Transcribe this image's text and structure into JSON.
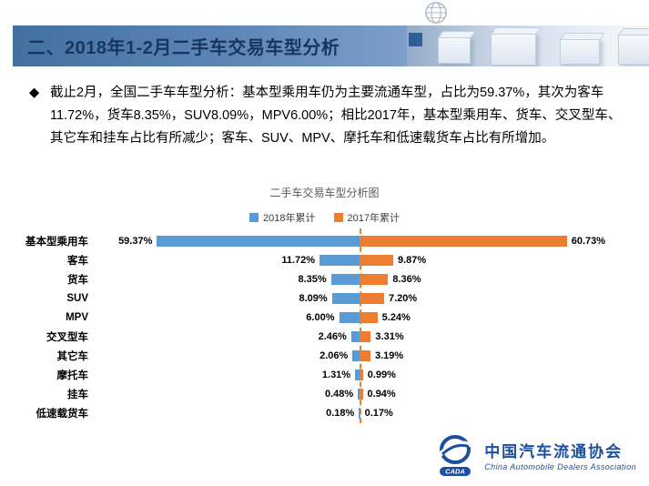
{
  "header": {
    "title": "二、2018年1-2月二手车交易车型分析"
  },
  "summary": {
    "bullet": "◆",
    "text": "截止2月，全国二手车车型分析：基本型乘用车仍为主要流通车型，占比为59.37%，其次为客车11.72%，货车8.35%，SUV8.09%，MPV6.00%；相比2017年，基本型乘用车、货车、交叉型车、其它车和挂车占比有所减少；客车、SUV、MPV、摩托车和低速载货车占比有所增加。"
  },
  "chart_data": {
    "type": "bar",
    "variant": "diverging-horizontal-tornado",
    "title": "二手车交易车型分析图",
    "categories": [
      "基本型乘用车",
      "客车",
      "货车",
      "SUV",
      "MPV",
      "交叉型车",
      "其它车",
      "摩托车",
      "挂车",
      "低速载货车"
    ],
    "series": [
      {
        "name": "2018年累计",
        "color": "#5B9BD5",
        "direction": "left",
        "values": [
          59.37,
          11.72,
          8.35,
          8.09,
          6.0,
          2.46,
          2.06,
          1.31,
          0.48,
          0.18
        ]
      },
      {
        "name": "2017年累计",
        "color": "#ED7D31",
        "direction": "right",
        "values": [
          60.73,
          9.87,
          8.36,
          7.2,
          5.24,
          3.31,
          3.19,
          0.99,
          0.94,
          0.17
        ]
      }
    ],
    "value_suffix": "%",
    "xlim": [
      0,
      65
    ],
    "grid": false,
    "legend_position": "top-center",
    "center_line_color": "#ED7D31"
  },
  "logo": {
    "badge": "CADA",
    "org_cn": "中国汽车流通协会",
    "org_en": "China Automobile Dealers Association"
  }
}
